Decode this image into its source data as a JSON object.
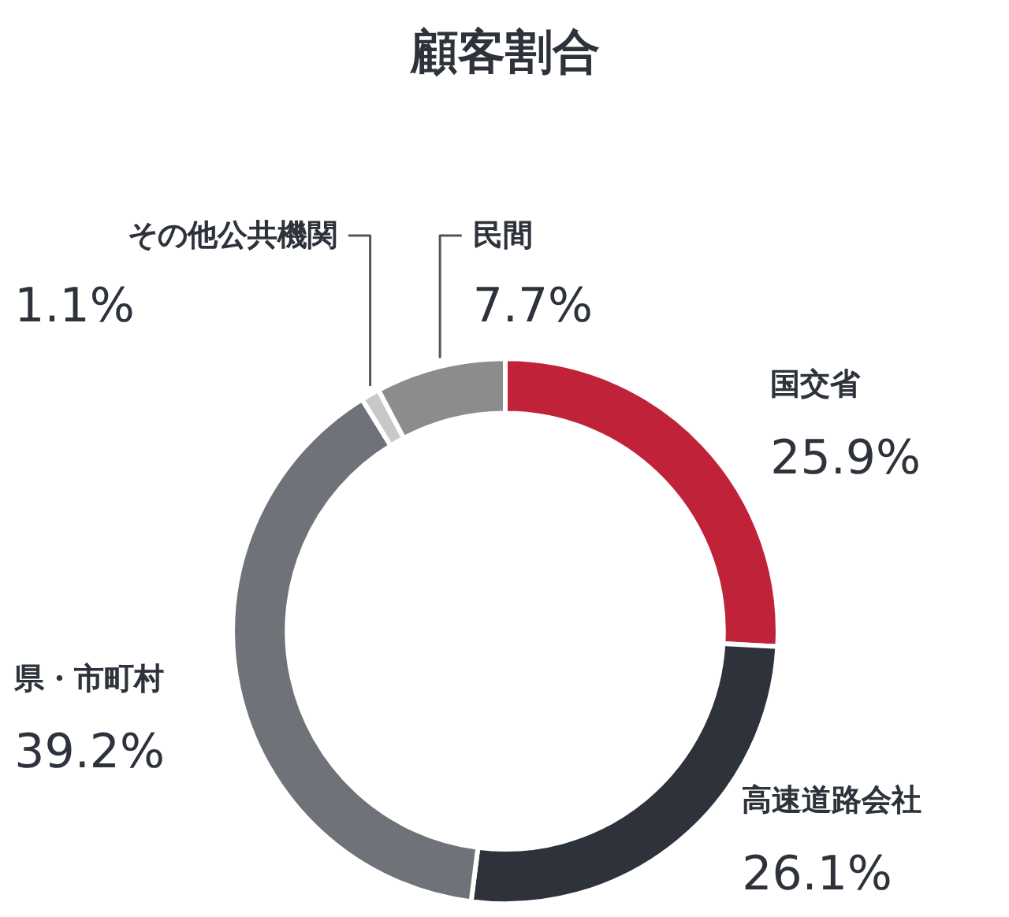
{
  "chart_data": {
    "type": "donut",
    "title": "顧客割合",
    "categories": [
      "国交省",
      "高速道路会社",
      "県・市町村",
      "その他公共機関",
      "民間"
    ],
    "values": [
      25.9,
      26.1,
      39.2,
      1.1,
      7.7
    ],
    "value_labels": [
      "25.9%",
      "26.1%",
      "39.2%",
      "1.1%",
      "7.7%"
    ],
    "colors": [
      "#c0223a",
      "#2d323b",
      "#6f7379",
      "#c8c8c8",
      "#8c8c8c"
    ]
  }
}
